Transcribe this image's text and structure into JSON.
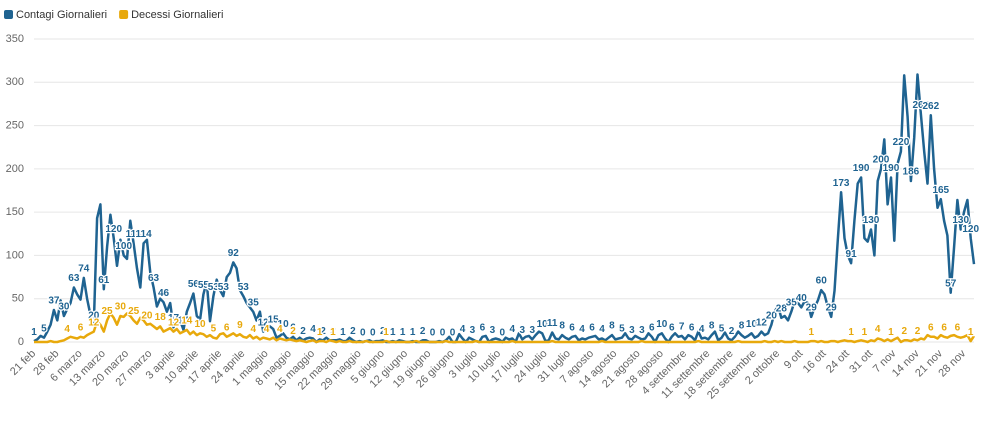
{
  "chart_data": {
    "type": "line",
    "categories": [
      "21 feb",
      null,
      null,
      null,
      null,
      null,
      null,
      "28 feb",
      null,
      null,
      null,
      null,
      null,
      null,
      "6 marzo",
      null,
      null,
      null,
      null,
      null,
      null,
      "13 marzo",
      null,
      null,
      null,
      null,
      null,
      null,
      "20 marzo",
      null,
      null,
      null,
      null,
      null,
      null,
      "27 marzo",
      null,
      null,
      null,
      null,
      null,
      null,
      "3 aprile",
      null,
      null,
      null,
      null,
      null,
      null,
      "10 aprile",
      null,
      null,
      null,
      null,
      null,
      null,
      "17 aprile",
      null,
      null,
      null,
      null,
      null,
      null,
      "24 aprile",
      null,
      null,
      null,
      null,
      null,
      null,
      "1 maggio",
      null,
      null,
      null,
      null,
      null,
      null,
      "8 maggio",
      null,
      null,
      null,
      null,
      null,
      null,
      "15 maggio",
      null,
      null,
      null,
      null,
      null,
      null,
      "22 maggio",
      null,
      null,
      null,
      null,
      null,
      null,
      "29 maggio",
      null,
      null,
      null,
      null,
      null,
      null,
      "5 giugno",
      null,
      null,
      null,
      null,
      null,
      null,
      "12 giugno",
      null,
      null,
      null,
      null,
      null,
      null,
      "19 giugno",
      null,
      null,
      null,
      null,
      null,
      null,
      "26 giugno",
      null,
      null,
      null,
      null,
      null,
      null,
      "3 luglio",
      null,
      null,
      null,
      null,
      null,
      null,
      "10 luglio",
      null,
      null,
      null,
      null,
      null,
      null,
      "17 luglio",
      null,
      null,
      null,
      null,
      null,
      null,
      "24 luglio",
      null,
      null,
      null,
      null,
      null,
      null,
      "31 luglio",
      null,
      null,
      null,
      null,
      null,
      null,
      "7 agosto",
      null,
      null,
      null,
      null,
      null,
      null,
      "14 agosto",
      null,
      null,
      null,
      null,
      null,
      null,
      "21 agosto",
      null,
      null,
      null,
      null,
      null,
      null,
      "28 agosto",
      null,
      null,
      null,
      null,
      null,
      null,
      "4 settembre",
      null,
      null,
      null,
      null,
      null,
      null,
      "11 settembre",
      null,
      null,
      null,
      null,
      null,
      null,
      "18 settembre",
      null,
      null,
      null,
      null,
      null,
      null,
      "25 settembre",
      null,
      null,
      null,
      null,
      null,
      null,
      "2 ottobre",
      null,
      null,
      null,
      null,
      null,
      null,
      "9 ott",
      null,
      null,
      null,
      null,
      null,
      null,
      "16 ott",
      null,
      null,
      null,
      null,
      null,
      null,
      "24 ott",
      null,
      null,
      null,
      null,
      null,
      null,
      "31 ott",
      null,
      null,
      null,
      null,
      null,
      null,
      "7 nov",
      null,
      null,
      null,
      null,
      null,
      null,
      "14 nov",
      null,
      null,
      null,
      null,
      null,
      null,
      "21 nov",
      null,
      null,
      null,
      null,
      null,
      null,
      "28 nov",
      null,
      null,
      null
    ],
    "series": [
      {
        "name": "Contagi Giornalieri",
        "color": "#1f6391",
        "values": [
          1,
          3,
          7,
          5,
          12,
          20,
          37,
          25,
          48,
          30,
          38,
          45,
          63,
          55,
          49,
          74,
          50,
          31,
          20,
          143,
          159,
          61,
          110,
          147,
          120,
          88,
          118,
          100,
          96,
          140,
          114,
          85,
          63,
          114,
          118,
          80,
          63,
          41,
          50,
          46,
          35,
          45,
          17,
          30,
          25,
          14,
          35,
          45,
          56,
          30,
          26,
          55,
          70,
          24,
          53,
          72,
          60,
          53,
          75,
          80,
          92,
          85,
          60,
          53,
          45,
          40,
          35,
          25,
          35,
          12,
          20,
          18,
          15,
          5,
          7,
          10,
          5,
          3,
          6,
          2,
          5,
          2,
          4,
          5,
          4,
          0,
          3,
          2,
          5,
          2,
          2,
          2,
          3,
          1,
          1,
          5,
          2,
          0,
          1,
          0,
          1,
          2,
          0,
          1,
          1,
          2,
          0,
          0,
          1,
          0,
          2,
          1,
          0,
          0,
          1,
          0,
          0,
          2,
          2,
          0,
          0,
          0,
          1,
          0,
          2,
          6,
          0,
          0,
          9,
          4,
          0,
          5,
          3,
          1,
          0,
          6,
          7,
          0,
          3,
          4,
          3,
          0,
          5,
          3,
          4,
          0,
          10,
          3,
          6,
          7,
          3,
          8,
          12,
          10,
          1,
          2,
          11,
          4,
          3,
          8,
          5,
          3,
          6,
          7,
          2,
          4,
          3,
          5,
          6,
          7,
          3,
          4,
          2,
          5,
          8,
          3,
          4,
          5,
          10,
          4,
          3,
          7,
          5,
          3,
          4,
          10,
          6,
          0,
          8,
          10,
          4,
          0,
          6,
          10,
          6,
          7,
          3,
          8,
          6,
          2,
          12,
          4,
          5,
          3,
          8,
          12,
          2,
          5,
          11,
          4,
          2,
          6,
          12,
          8,
          5,
          7,
          10,
          5,
          7,
          12,
          8,
          10,
          20,
          35,
          42,
          28,
          30,
          25,
          35,
          47,
          45,
          40,
          47,
          45,
          29,
          40,
          48,
          60,
          55,
          40,
          29,
          59,
          118,
          173,
          120,
          100,
          91,
          140,
          183,
          190,
          120,
          116,
          130,
          100,
          186,
          200,
          234,
          159,
          190,
          117,
          206,
          220,
          308,
          260,
          186,
          236,
          309,
          263,
          220,
          183,
          262,
          200,
          155,
          165,
          140,
          123,
          57,
          110,
          164,
          130,
          150,
          164,
          120,
          90
        ]
      },
      {
        "name": "Decessi Giornalieri",
        "color": "#e8a90c",
        "values": [
          0,
          0,
          0,
          0,
          0,
          1,
          0,
          0,
          1,
          2,
          4,
          6,
          5,
          4,
          6,
          5,
          8,
          10,
          12,
          24,
          20,
          12,
          25,
          33,
          28,
          20,
          30,
          29,
          33,
          30,
          25,
          21,
          28,
          25,
          20,
          21,
          18,
          15,
          18,
          12,
          14,
          16,
          12,
          15,
          10,
          12,
          14,
          9,
          12,
          8,
          10,
          9,
          6,
          8,
          5,
          4,
          9,
          10,
          6,
          8,
          10,
          7,
          9,
          6,
          5,
          8,
          4,
          6,
          3,
          5,
          4,
          3,
          5,
          2,
          4,
          3,
          2,
          3,
          2,
          1,
          2,
          1,
          0,
          1,
          2,
          0,
          1,
          1,
          0,
          2,
          1,
          0,
          1,
          0,
          0,
          1,
          0,
          0,
          0,
          0,
          1,
          0,
          0,
          0,
          0,
          0,
          1,
          0,
          0,
          0,
          0,
          0,
          0,
          0,
          0,
          1,
          0,
          0,
          0,
          0,
          0,
          0,
          0,
          0,
          1,
          0,
          0,
          0,
          0,
          0,
          0,
          0,
          0,
          1,
          0,
          0,
          0,
          0,
          0,
          0,
          0,
          0,
          0,
          0,
          1,
          0,
          0,
          0,
          0,
          0,
          0,
          0,
          0,
          0,
          0,
          0,
          1,
          0,
          0,
          0,
          0,
          0,
          0,
          0,
          0,
          0,
          0,
          0,
          0,
          0,
          0,
          1,
          0,
          0,
          0,
          0,
          0,
          0,
          0,
          0,
          0,
          0,
          0,
          1,
          0,
          0,
          0,
          0,
          0,
          0,
          0,
          0,
          0,
          0,
          0,
          0,
          0,
          0,
          0,
          0,
          1,
          0,
          0,
          0,
          0,
          0,
          0,
          0,
          0,
          0,
          0,
          0,
          1,
          0,
          0,
          0,
          0,
          0,
          0,
          0,
          1,
          0,
          0,
          1,
          0,
          1,
          0,
          0,
          0,
          1,
          0,
          0,
          0,
          0,
          1,
          1,
          0,
          1,
          0,
          0,
          1,
          1,
          0,
          1,
          2,
          1,
          1,
          0,
          1,
          2,
          1,
          0,
          2,
          1,
          4,
          3,
          1,
          3,
          1,
          3,
          5,
          0,
          2,
          2,
          1,
          3,
          2,
          4,
          3,
          8,
          6,
          6,
          4,
          8,
          6,
          5,
          7,
          8,
          6,
          5,
          6,
          8,
          1,
          7
        ]
      }
    ],
    "ylim": [
      0,
      350
    ],
    "yticks": [
      0,
      50,
      100,
      150,
      200,
      250,
      300,
      350
    ],
    "grid": true,
    "legend": "top-left"
  }
}
